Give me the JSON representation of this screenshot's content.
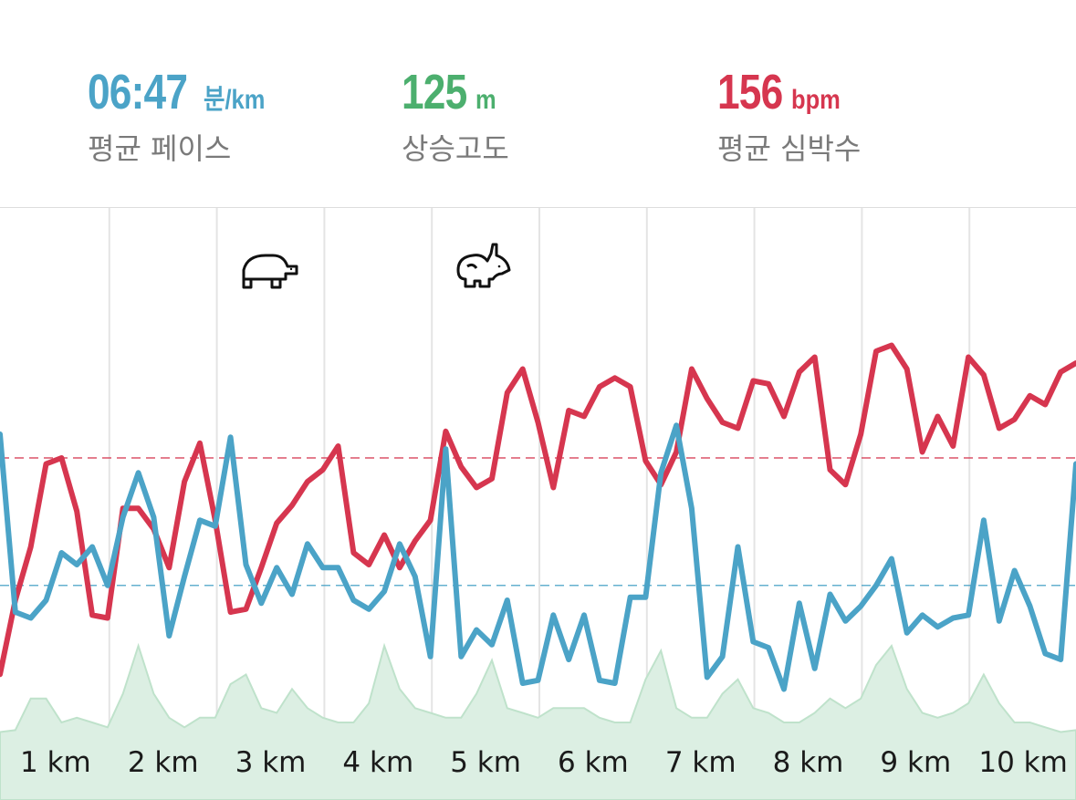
{
  "stats": {
    "pace": {
      "value": "06:47",
      "unit": "분/km",
      "label": "평균 페이스",
      "color": "#4ba3c7"
    },
    "elevation": {
      "value": "125",
      "unit": "m",
      "label": "상승고도",
      "color": "#4caf6e"
    },
    "heart_rate": {
      "value": "156",
      "unit": "bpm",
      "label": "평균 심박수",
      "color": "#d6364f"
    }
  },
  "chart_data": {
    "type": "line",
    "title": "",
    "xlabel": "",
    "ylabel": "",
    "x_range_km": [
      0,
      10.5
    ],
    "x_tick_labels": [
      "1 km",
      "2 km",
      "3 km",
      "4 km",
      "5 km",
      "6 km",
      "7 km",
      "8 km",
      "9 km",
      "10 km"
    ],
    "grid": "vertical",
    "markers": [
      {
        "icon": "turtle-icon",
        "meaning": "slowest",
        "km": 2.5
      },
      {
        "icon": "rabbit-icon",
        "meaning": "fastest",
        "km": 4.5
      }
    ],
    "pace_series": {
      "name": "페이스",
      "color": "#4ba3c7",
      "values": [
        0.96,
        0.36,
        0.34,
        0.4,
        0.56,
        0.52,
        0.58,
        0.45,
        0.68,
        0.83,
        0.68,
        0.28,
        0.48,
        0.67,
        0.65,
        0.95,
        0.52,
        0.39,
        0.51,
        0.42,
        0.59,
        0.51,
        0.51,
        0.4,
        0.37,
        0.43,
        0.59,
        0.48,
        0.21,
        0.91,
        0.21,
        0.3,
        0.25,
        0.4,
        0.12,
        0.13,
        0.35,
        0.2,
        0.35,
        0.13,
        0.12,
        0.41,
        0.41,
        0.83,
        0.99,
        0.71,
        0.14,
        0.21,
        0.58,
        0.26,
        0.24,
        0.1,
        0.39,
        0.17,
        0.42,
        0.33,
        0.38,
        0.45,
        0.54,
        0.29,
        0.35,
        0.31,
        0.34,
        0.35,
        0.67,
        0.33,
        0.5,
        0.38,
        0.22,
        0.2,
        0.86
      ]
    },
    "heart_rate_series": {
      "name": "심박수",
      "color": "#d6364f",
      "values": [
        0.15,
        0.4,
        0.58,
        0.86,
        0.88,
        0.7,
        0.35,
        0.34,
        0.71,
        0.71,
        0.64,
        0.51,
        0.8,
        0.93,
        0.67,
        0.36,
        0.37,
        0.51,
        0.66,
        0.72,
        0.8,
        0.84,
        0.92,
        0.56,
        0.52,
        0.62,
        0.51,
        0.6,
        0.67,
        0.97,
        0.85,
        0.78,
        0.81,
        1.1,
        1.18,
        1.0,
        0.78,
        1.04,
        1.02,
        1.12,
        1.15,
        1.12,
        0.87,
        0.79,
        0.9,
        1.18,
        1.08,
        1.0,
        0.98,
        1.14,
        1.13,
        1.02,
        1.17,
        1.22,
        0.84,
        0.79,
        0.96,
        1.24,
        1.26,
        1.18,
        0.9,
        1.02,
        0.92,
        1.22,
        1.16,
        0.98,
        1.01,
        1.09,
        1.06,
        1.17,
        1.2
      ]
    },
    "pace_average_line": 0.45,
    "hr_average_line": 0.88,
    "elevation_series": {
      "name": "고도",
      "color": "#4caf6e",
      "values": [
        0.1,
        0.12,
        0.45,
        0.45,
        0.2,
        0.25,
        0.2,
        0.15,
        0.5,
        1.0,
        0.5,
        0.25,
        0.15,
        0.25,
        0.25,
        0.6,
        0.7,
        0.35,
        0.3,
        0.55,
        0.35,
        0.25,
        0.2,
        0.2,
        0.4,
        1.0,
        0.55,
        0.35,
        0.3,
        0.25,
        0.25,
        0.5,
        0.85,
        0.35,
        0.3,
        0.25,
        0.35,
        0.35,
        0.35,
        0.25,
        0.2,
        0.2,
        0.65,
        0.95,
        0.35,
        0.25,
        0.25,
        0.5,
        0.65,
        0.35,
        0.3,
        0.2,
        0.2,
        0.3,
        0.45,
        0.35,
        0.45,
        0.8,
        1.0,
        0.55,
        0.3,
        0.25,
        0.3,
        0.4,
        0.7,
        0.4,
        0.2,
        0.2,
        0.15,
        0.1,
        0.12
      ]
    }
  }
}
